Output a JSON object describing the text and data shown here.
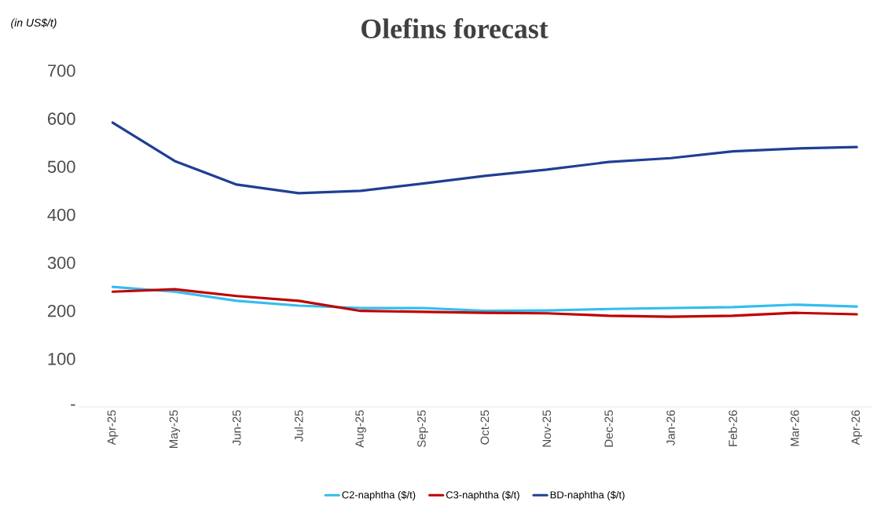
{
  "chart_data": {
    "type": "line",
    "title": "Olefins forecast",
    "annotations": [
      "(in US$/t)"
    ],
    "categories": [
      "Apr-25",
      "May-25",
      "Jun-25",
      "Jul-25",
      "Aug-25",
      "Sep-25",
      "Oct-25",
      "Nov-25",
      "Dec-25",
      "Jan-26",
      "Feb-26",
      "Mar-26",
      "Apr-26"
    ],
    "series": [
      {
        "name": "C2-naphtha ($/t)",
        "color": "#33bdef",
        "values": [
          250,
          240,
          221,
          211,
          206,
          206,
          200,
          201,
          204,
          206,
          208,
          213,
          209
        ]
      },
      {
        "name": "C3-naphtha ($/t)",
        "color": "#c00000",
        "values": [
          240,
          245,
          231,
          221,
          200,
          198,
          196,
          195,
          190,
          188,
          190,
          196,
          193
        ]
      },
      {
        "name": "BD-naphtha ($/t)",
        "color": "#1f3f93",
        "values": [
          592,
          512,
          463,
          445,
          450,
          465,
          481,
          494,
          510,
          518,
          532,
          538,
          541
        ]
      }
    ],
    "ylim": [
      0,
      700
    ],
    "yticks": [
      {
        "value": 0,
        "label": "-"
      },
      100,
      200,
      300,
      400,
      500,
      600,
      700
    ],
    "grid": false,
    "legend": "bottom"
  }
}
